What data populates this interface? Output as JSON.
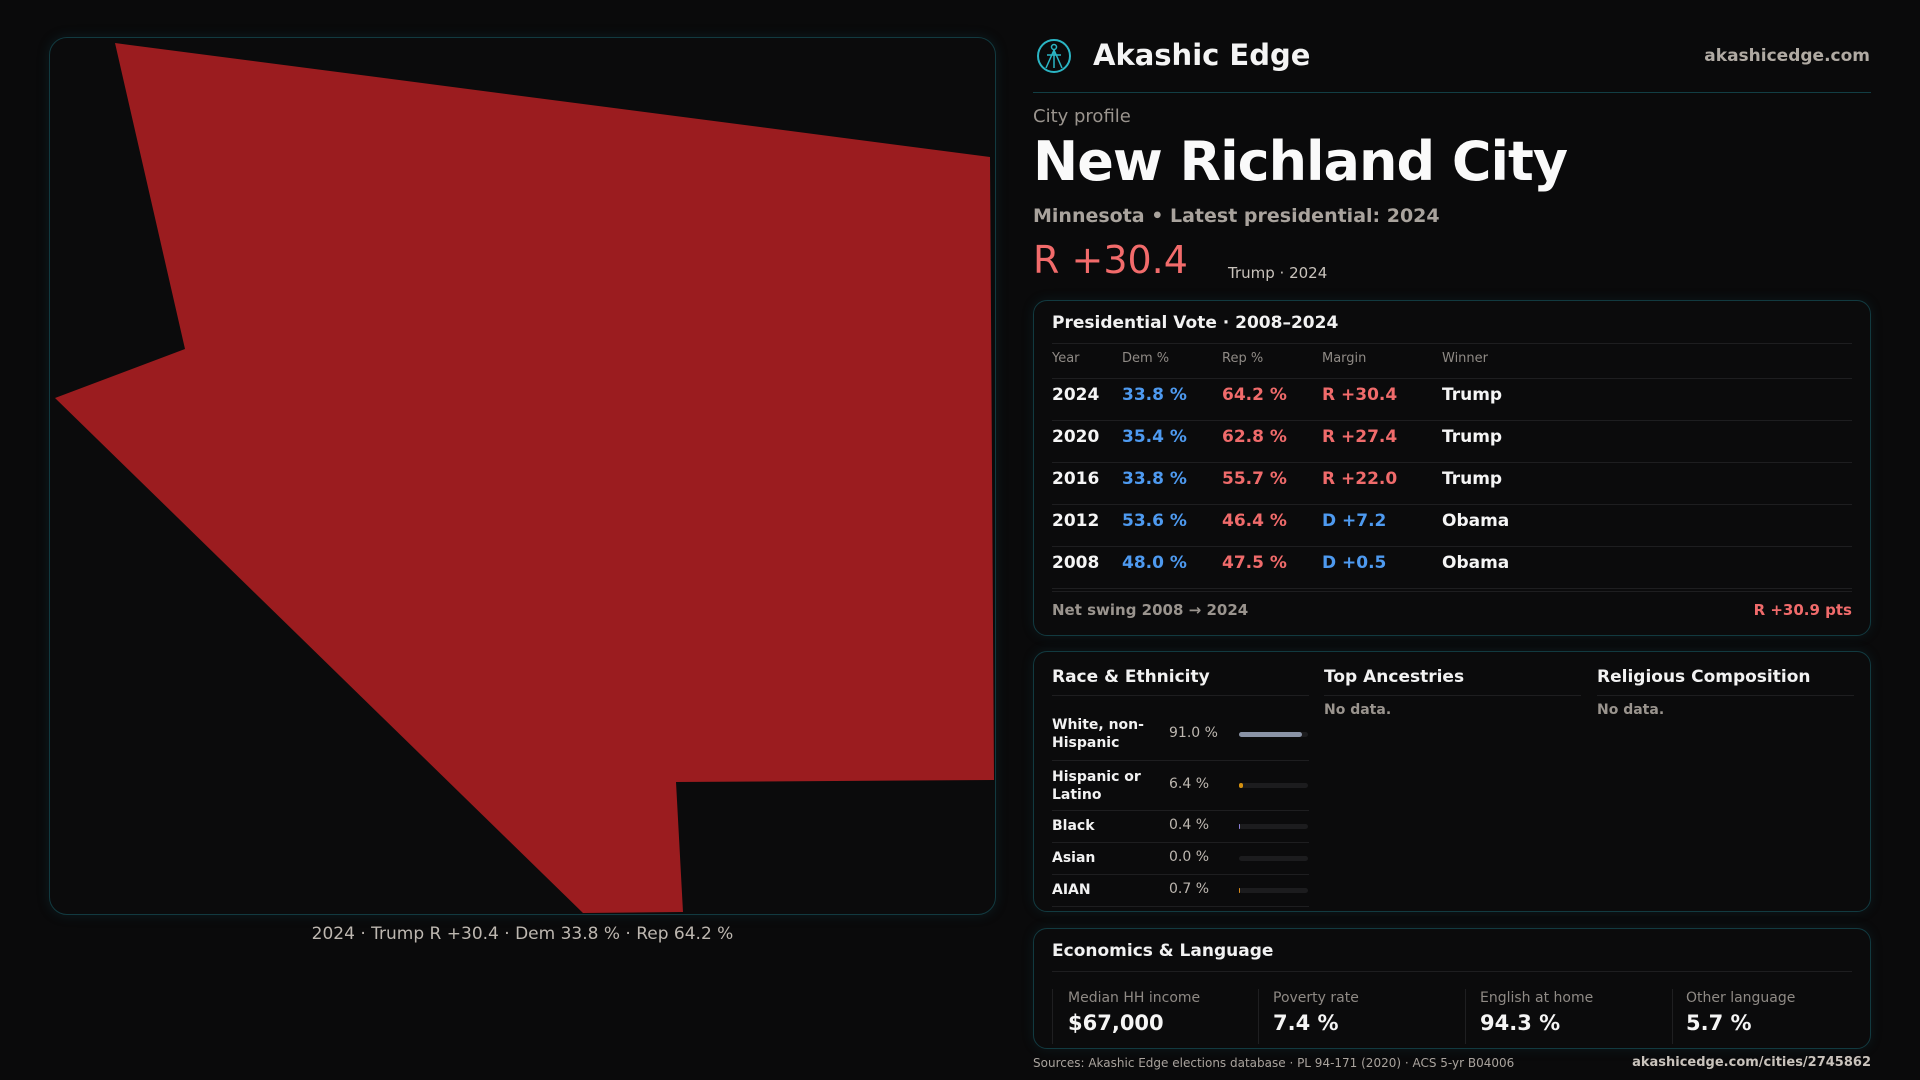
{
  "brand": {
    "name": "Akashic Edge",
    "site": "akashicedge.com",
    "logo_icon": "compass-figure-icon",
    "accent": "#2bb5c4"
  },
  "profile": {
    "eyebrow": "City profile",
    "city": "New Richland City",
    "subtitle": "Minnesota • Latest presidential: 2024",
    "margin": "R +30.4",
    "margin_note": "Trump · 2024"
  },
  "map": {
    "fill_color": "#9b1c1f",
    "caption": "2024 · Trump R +30.4 · Dem 33.8 % · Rep 64.2 %"
  },
  "presidential": {
    "title": "Presidential Vote · 2008–2024",
    "headers": [
      "Year",
      "Dem %",
      "Rep %",
      "Margin",
      "Winner"
    ],
    "rows": [
      {
        "year": "2024",
        "dem": "33.8 %",
        "rep": "64.2 %",
        "margin": "R +30.4",
        "party": "rep",
        "winner": "Trump"
      },
      {
        "year": "2020",
        "dem": "35.4 %",
        "rep": "62.8 %",
        "margin": "R +27.4",
        "party": "rep",
        "winner": "Trump"
      },
      {
        "year": "2016",
        "dem": "33.8 %",
        "rep": "55.7 %",
        "margin": "R +22.0",
        "party": "rep",
        "winner": "Trump"
      },
      {
        "year": "2012",
        "dem": "53.6 %",
        "rep": "46.4 %",
        "margin": "D +7.2",
        "party": "dem",
        "winner": "Obama"
      },
      {
        "year": "2008",
        "dem": "48.0 %",
        "rep": "47.5 %",
        "margin": "D +0.5",
        "party": "dem",
        "winner": "Obama"
      }
    ],
    "swing_label": "Net swing 2008 → 2024",
    "swing_value": "R +30.9 pts",
    "colors": {
      "dem": "#4e9af0",
      "rep": "#f06b6b"
    }
  },
  "race": {
    "title": "Race & Ethnicity",
    "rows": [
      {
        "label": "White, non-Hispanic",
        "value": "91.0 %",
        "pct": 91.0,
        "color": "#8a93a6"
      },
      {
        "label": "Hispanic or Latino",
        "value": "6.4 %",
        "pct": 6.4,
        "color": "#d4900f"
      },
      {
        "label": "Black",
        "value": "0.4 %",
        "pct": 0.4,
        "color": "#8b7fd6"
      },
      {
        "label": "Asian",
        "value": "0.0 %",
        "pct": 0.0,
        "color": "#3aa0a0"
      },
      {
        "label": "AIAN",
        "value": "0.7 %",
        "pct": 0.7,
        "color": "#d98a1a"
      }
    ]
  },
  "ancestries": {
    "title": "Top Ancestries",
    "empty": "No data."
  },
  "religion": {
    "title": "Religious Composition",
    "empty": "No data."
  },
  "economics": {
    "title": "Economics & Language",
    "metrics": [
      {
        "label": "Median HH income",
        "value": "$67,000"
      },
      {
        "label": "Poverty rate",
        "value": "7.4 %"
      },
      {
        "label": "English at home",
        "value": "94.3 %"
      },
      {
        "label": "Other language",
        "value": "5.7 %"
      }
    ]
  },
  "footer": {
    "sources": "Sources: Akashic Edge elections database · PL 94-171 (2020) · ACS 5-yr B04006",
    "url": "akashicedge.com/cities/2745862"
  }
}
